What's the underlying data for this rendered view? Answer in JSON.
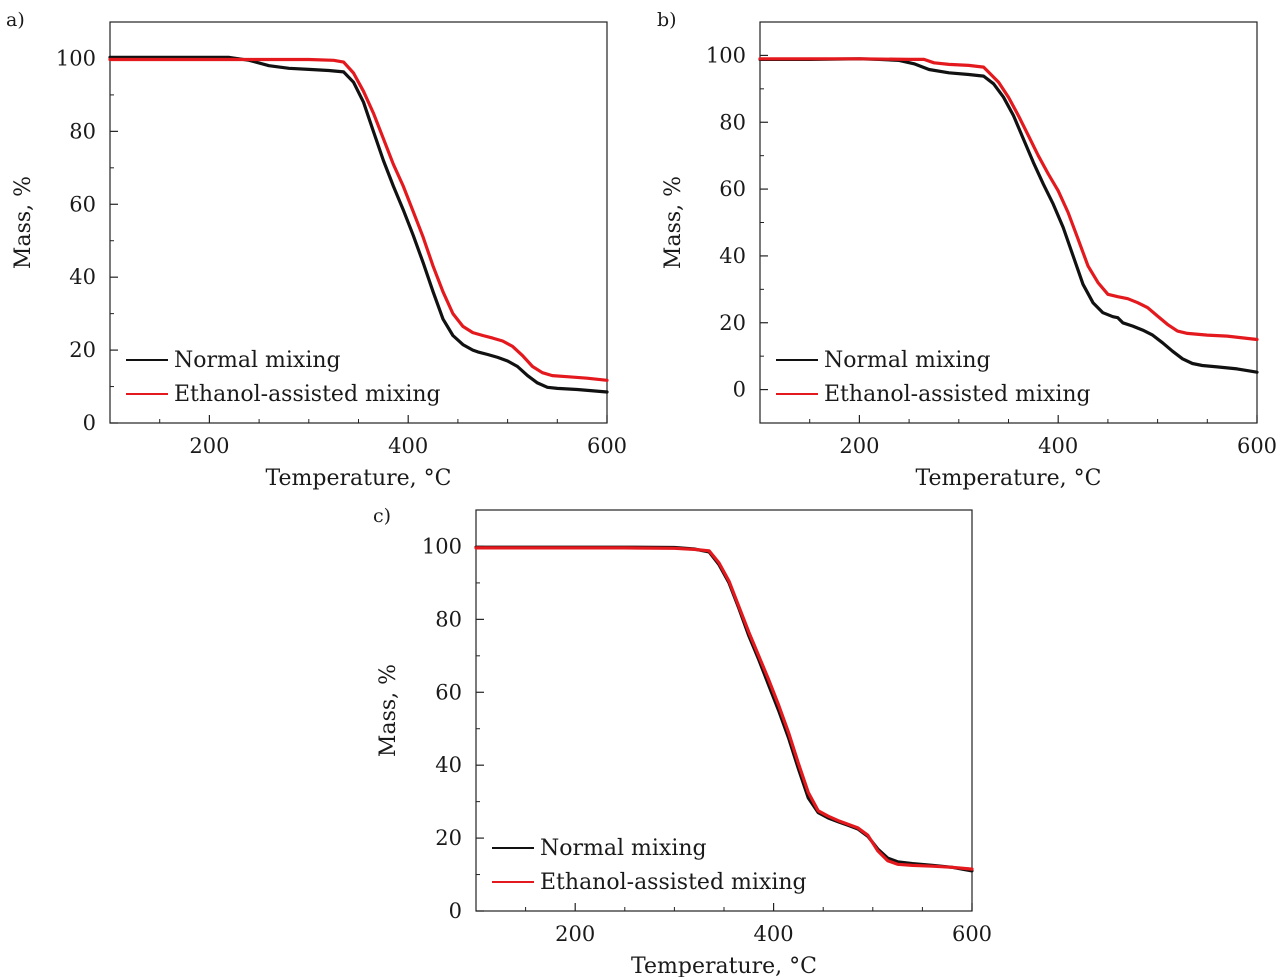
{
  "figure": {
    "colors": {
      "normal": "#111111",
      "ethanol": "#e3191e",
      "axis": "#222222"
    }
  },
  "chart_data": [
    {
      "type": "line",
      "panel_label": "a)",
      "xlabel": "Temperature, °C",
      "ylabel": "Mass, %",
      "xlim": [
        100,
        600
      ],
      "ylim": [
        0,
        110
      ],
      "xticks": [
        200,
        400,
        600
      ],
      "yticks": [
        0,
        20,
        40,
        60,
        80,
        100
      ],
      "legend_position": "bottom-left",
      "series": [
        {
          "name": "Normal mixing",
          "x": [
            100,
            150,
            200,
            220,
            240,
            260,
            280,
            300,
            320,
            335,
            345,
            355,
            365,
            375,
            385,
            395,
            405,
            415,
            425,
            435,
            445,
            455,
            465,
            470,
            480,
            490,
            500,
            510,
            520,
            530,
            540,
            550,
            570,
            600
          ],
          "y": [
            100.3,
            100.3,
            100.3,
            100.3,
            99.5,
            98.0,
            97.3,
            97.0,
            96.7,
            96.3,
            93.5,
            88.0,
            80.0,
            72.0,
            65.0,
            58.5,
            51.5,
            44.0,
            36.0,
            28.5,
            24.0,
            21.5,
            20.0,
            19.5,
            18.8,
            18.0,
            17.0,
            15.5,
            13.0,
            11.0,
            9.8,
            9.5,
            9.2,
            8.5
          ]
        },
        {
          "name": "Ethanol-assisted mixing",
          "x": [
            100,
            150,
            200,
            250,
            300,
            325,
            335,
            345,
            355,
            365,
            375,
            385,
            395,
            405,
            415,
            425,
            435,
            445,
            455,
            465,
            475,
            485,
            495,
            505,
            515,
            525,
            535,
            545,
            560,
            580,
            600
          ],
          "y": [
            99.7,
            99.7,
            99.7,
            99.7,
            99.7,
            99.5,
            99.0,
            96.0,
            91.0,
            85.0,
            78.0,
            71.0,
            65.0,
            58.0,
            51.0,
            43.0,
            36.0,
            30.0,
            26.5,
            24.8,
            24.0,
            23.3,
            22.5,
            21.0,
            18.5,
            15.5,
            13.8,
            13.0,
            12.7,
            12.3,
            11.7
          ]
        }
      ]
    },
    {
      "type": "line",
      "panel_label": "b)",
      "xlabel": "Temperature, °C",
      "ylabel": "Mass, %",
      "xlim": [
        100,
        600
      ],
      "ylim": [
        -10,
        110
      ],
      "xticks": [
        200,
        400,
        600
      ],
      "yticks": [
        0,
        20,
        40,
        60,
        80,
        100
      ],
      "legend_position": "bottom-left",
      "series": [
        {
          "name": "Normal mixing",
          "x": [
            100,
            150,
            200,
            220,
            240,
            255,
            270,
            290,
            310,
            325,
            335,
            345,
            355,
            365,
            375,
            385,
            395,
            405,
            415,
            425,
            435,
            445,
            455,
            460,
            465,
            475,
            485,
            495,
            505,
            515,
            525,
            535,
            545,
            560,
            580,
            600
          ],
          "y": [
            98.8,
            98.8,
            99.0,
            98.8,
            98.5,
            97.5,
            95.8,
            94.8,
            94.3,
            93.8,
            91.5,
            87.5,
            82.0,
            75.0,
            68.0,
            61.5,
            55.5,
            48.5,
            40.0,
            31.5,
            26.0,
            23.0,
            21.8,
            21.5,
            20.0,
            19.0,
            17.8,
            16.3,
            14.0,
            11.5,
            9.2,
            7.8,
            7.2,
            6.8,
            6.2,
            5.2
          ]
        },
        {
          "name": "Ethanol-assisted mixing",
          "x": [
            100,
            150,
            200,
            250,
            265,
            275,
            290,
            310,
            325,
            330,
            340,
            350,
            360,
            370,
            380,
            390,
            400,
            410,
            420,
            430,
            440,
            450,
            460,
            470,
            480,
            490,
            500,
            510,
            520,
            530,
            550,
            570,
            600
          ],
          "y": [
            99.0,
            99.0,
            99.0,
            98.8,
            98.8,
            97.8,
            97.3,
            97.0,
            96.5,
            95.0,
            92.0,
            87.5,
            82.0,
            76.0,
            70.0,
            64.5,
            59.5,
            53.0,
            45.0,
            37.0,
            32.0,
            28.5,
            27.8,
            27.2,
            26.0,
            24.5,
            22.0,
            19.5,
            17.5,
            16.8,
            16.3,
            16.0,
            15.0
          ]
        }
      ]
    },
    {
      "type": "line",
      "panel_label": "c)",
      "xlabel": "Temperature, °C",
      "ylabel": "Mass, %",
      "xlim": [
        100,
        600
      ],
      "ylim": [
        0,
        110
      ],
      "xticks": [
        200,
        400,
        600
      ],
      "yticks": [
        0,
        20,
        40,
        60,
        80,
        100
      ],
      "legend_position": "bottom-left",
      "series": [
        {
          "name": "Normal mixing",
          "x": [
            100,
            150,
            200,
            250,
            300,
            320,
            335,
            345,
            355,
            365,
            375,
            385,
            395,
            405,
            415,
            425,
            435,
            445,
            455,
            465,
            475,
            485,
            495,
            505,
            515,
            525,
            540,
            560,
            580,
            600
          ],
          "y": [
            99.8,
            99.8,
            99.8,
            99.8,
            99.7,
            99.3,
            98.5,
            95.0,
            90.0,
            83.0,
            75.5,
            69.0,
            62.0,
            55.0,
            47.5,
            39.0,
            31.0,
            27.0,
            25.5,
            24.5,
            23.5,
            22.5,
            20.5,
            17.0,
            14.5,
            13.5,
            13.0,
            12.5,
            12.0,
            11.0
          ]
        },
        {
          "name": "Ethanol-assisted mixing",
          "x": [
            100,
            150,
            200,
            250,
            300,
            320,
            335,
            345,
            355,
            365,
            375,
            385,
            395,
            405,
            415,
            425,
            435,
            445,
            455,
            465,
            475,
            485,
            495,
            505,
            515,
            525,
            540,
            560,
            580,
            600
          ],
          "y": [
            99.6,
            99.6,
            99.6,
            99.6,
            99.5,
            99.2,
            98.8,
            95.5,
            90.5,
            83.5,
            76.5,
            70.0,
            63.5,
            56.5,
            49.0,
            40.5,
            32.5,
            27.5,
            26.0,
            24.8,
            23.8,
            22.8,
            20.8,
            16.5,
            13.8,
            12.8,
            12.5,
            12.3,
            12.0,
            11.5
          ]
        }
      ]
    }
  ]
}
